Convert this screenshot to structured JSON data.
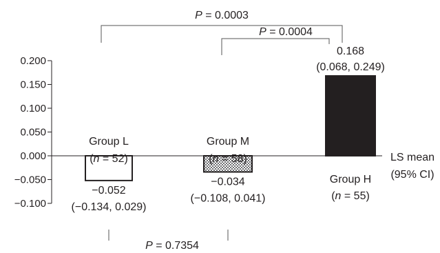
{
  "chart_data": {
    "type": "bar",
    "categories": [
      "Group L",
      "Group M",
      "Group H"
    ],
    "values": [
      -0.052,
      -0.034,
      0.168
    ],
    "ci": [
      [
        -0.134,
        0.029
      ],
      [
        -0.108,
        0.041
      ],
      [
        0.068,
        0.249
      ]
    ],
    "group_labels": [
      "Group L",
      "Group M",
      "Group H"
    ],
    "n_labels": [
      "(n = 52)",
      "(n = 58)",
      "(n = 55)"
    ],
    "value_labels": [
      "−0.052",
      "−0.034",
      "0.168"
    ],
    "ci_labels": [
      "(−0.134, 0.029)",
      "(−0.108, 0.041)",
      "(0.068, 0.249)"
    ],
    "fills": [
      "#ffffff",
      "pattern-checker",
      "#231f20"
    ],
    "yticks": [
      0.2,
      0.15,
      0.1,
      0.05,
      0.0,
      -0.05,
      -0.1
    ],
    "ytick_labels": [
      "0.200",
      "0.150",
      "0.100",
      "0.050",
      "0.000",
      "−0.050",
      "−0.100"
    ],
    "ylim": [
      -0.1,
      0.2
    ],
    "ylabel_lines": [
      "LS mean",
      "(95% CI)"
    ],
    "comparisons": [
      {
        "between": [
          "Group L",
          "Group H"
        ],
        "label": "P = 0.0003"
      },
      {
        "between": [
          "Group M",
          "Group H"
        ],
        "label": "P = 0.0004"
      },
      {
        "between": [
          "Group L",
          "Group M"
        ],
        "label": "P = 0.7354"
      }
    ],
    "grid": false,
    "legend": "none"
  }
}
